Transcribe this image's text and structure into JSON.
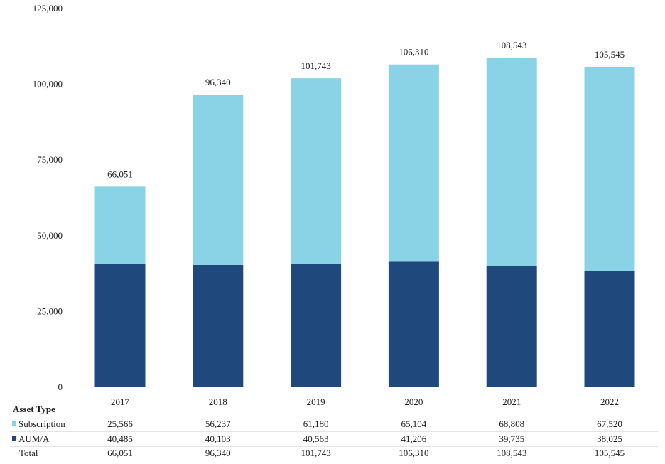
{
  "chart_data": {
    "type": "bar",
    "stacked": true,
    "categories": [
      "2017",
      "2018",
      "2019",
      "2020",
      "2021",
      "2022"
    ],
    "series": [
      {
        "name": "AUM/A",
        "color": "#1f497d",
        "values": [
          40485,
          40103,
          40563,
          41206,
          39735,
          38025
        ]
      },
      {
        "name": "Subscription",
        "color": "#8ad3e6",
        "values": [
          25566,
          56237,
          61180,
          65104,
          68808,
          67520
        ]
      }
    ],
    "totals": [
      66051,
      96340,
      101743,
      106310,
      108543,
      105545
    ],
    "ylim": [
      0,
      125000
    ],
    "yticks": [
      0,
      25000,
      50000,
      75000,
      100000,
      125000
    ],
    "ytick_labels": [
      "0",
      "25,000",
      "50,000",
      "75,000",
      "100,000",
      "125,000"
    ],
    "title": "",
    "xlabel": "",
    "ylabel": "",
    "grid": false
  },
  "table": {
    "header": "Asset Type",
    "rows": [
      {
        "label": "Subscription",
        "color": "#8ad3e6",
        "values": [
          "25,566",
          "56,237",
          "61,180",
          "65,104",
          "68,808",
          "67,520"
        ]
      },
      {
        "label": "AUM/A",
        "color": "#1f497d",
        "values": [
          "40,485",
          "40,103",
          "40,563",
          "41,206",
          "39,735",
          "38,025"
        ]
      },
      {
        "label": "Total",
        "color": "",
        "values": [
          "66,051",
          "96,340",
          "101,743",
          "106,310",
          "108,543",
          "105,545"
        ]
      }
    ]
  },
  "total_labels": [
    "66,051",
    "96,340",
    "101,743",
    "106,310",
    "108,543",
    "105,545"
  ]
}
